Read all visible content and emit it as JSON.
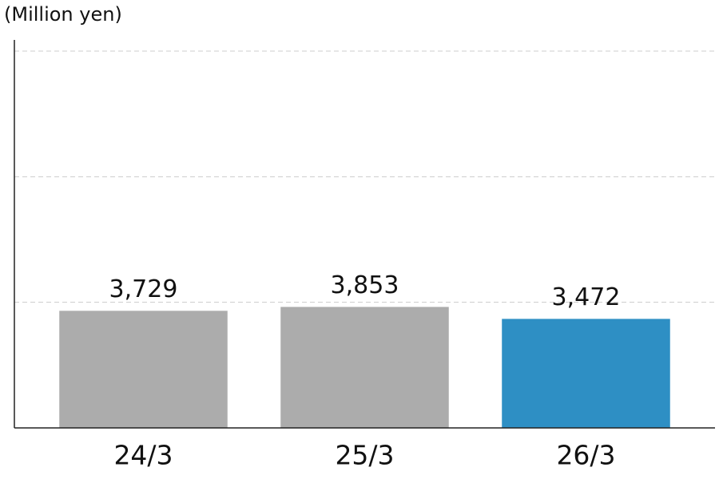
{
  "chart_data": {
    "type": "bar",
    "y_axis_label": "(Million yen)",
    "categories": [
      "24/3",
      "25/3",
      "26/3"
    ],
    "values": [
      3729,
      3853,
      3472
    ],
    "value_labels": [
      "3,729",
      "3,853",
      "3,472"
    ],
    "colors": [
      "#acacac",
      "#acacac",
      "#2e8fc4"
    ],
    "ylim": [
      0,
      12000
    ],
    "yticks": [
      4000,
      8000,
      12000
    ],
    "grid": true
  }
}
